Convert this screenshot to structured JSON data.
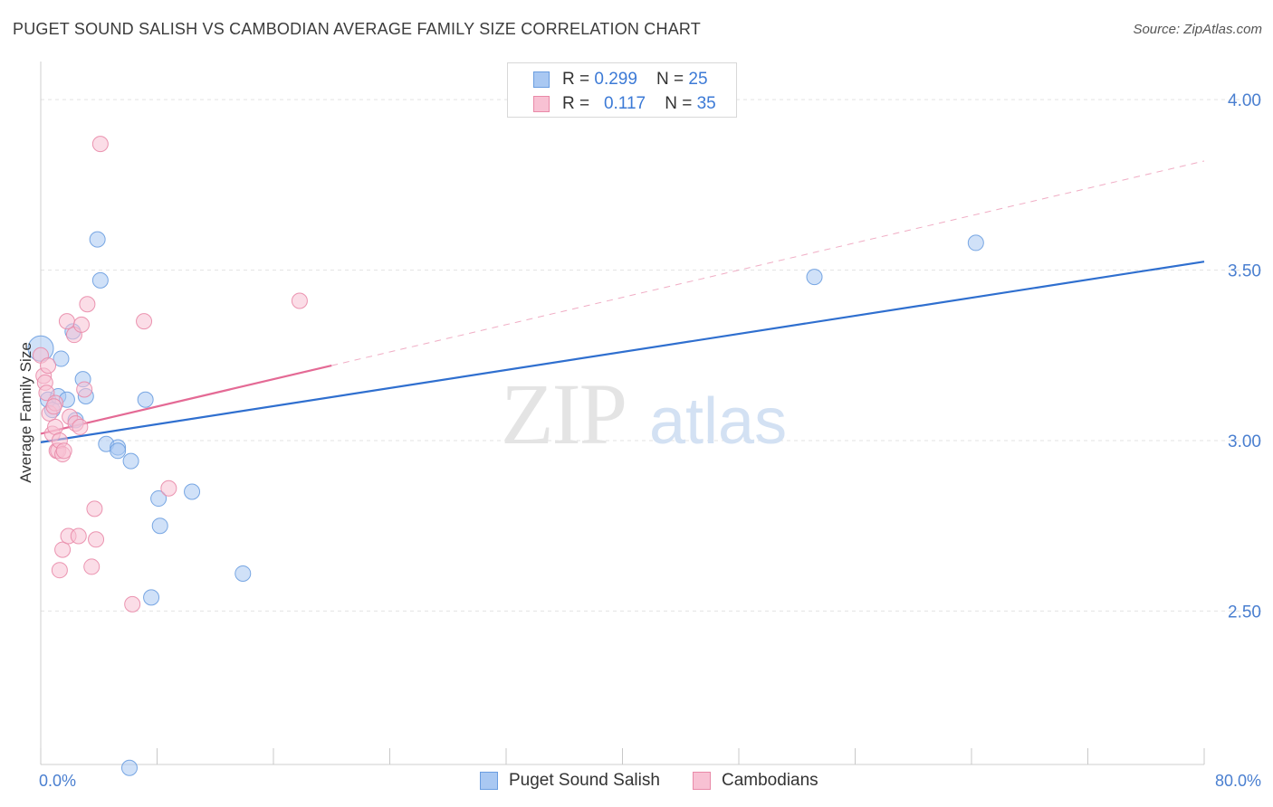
{
  "title": "PUGET SOUND SALISH VS CAMBODIAN AVERAGE FAMILY SIZE CORRELATION CHART",
  "source": "Source: ZipAtlas.com",
  "watermark": {
    "zip": "ZIP",
    "atlas": "atlas"
  },
  "legend": {
    "rows": [
      {
        "r_label": "R = ",
        "r_value": "0.299",
        "n_label": "N = ",
        "n_value": "25",
        "color": "#a9c8f2",
        "border": "#6a9de0"
      },
      {
        "r_label": "R = ",
        "r_value": "0.117",
        "n_label": "N = ",
        "n_value": "35",
        "color": "#f8c1d3",
        "border": "#e98aa8"
      }
    ]
  },
  "bottom_legend": [
    {
      "label": "Puget Sound Salish",
      "color": "#a9c8f2",
      "border": "#6a9de0"
    },
    {
      "label": "Cambodians",
      "color": "#f8c1d3",
      "border": "#e98aa8"
    }
  ],
  "chart_data": {
    "type": "scatter",
    "title": "PUGET SOUND SALISH VS CAMBODIAN AVERAGE FAMILY SIZE CORRELATION CHART",
    "xlabel": "",
    "ylabel": "Average Family Size",
    "xlim": [
      0,
      80
    ],
    "ylim": [
      2.05,
      4.08
    ],
    "x_tick_labels": [
      "0.0%",
      "80.0%"
    ],
    "y_ticks": [
      4.0,
      3.5,
      3.0,
      2.5
    ],
    "y_tick_labels": [
      "4.00",
      "3.50",
      "3.00",
      "2.50"
    ],
    "grid": "horizontal dashed",
    "series": [
      {
        "name": "Puget Sound Salish",
        "color": "#a9c8f2",
        "line_color": "#2f6fcf",
        "r": 0.299,
        "n": 25,
        "points": [
          [
            0.0,
            3.27
          ],
          [
            0.5,
            3.12
          ],
          [
            0.8,
            3.09
          ],
          [
            1.2,
            3.13
          ],
          [
            1.4,
            3.24
          ],
          [
            1.8,
            3.12
          ],
          [
            2.2,
            3.32
          ],
          [
            2.4,
            3.06
          ],
          [
            2.9,
            3.18
          ],
          [
            3.1,
            3.13
          ],
          [
            3.9,
            3.59
          ],
          [
            4.1,
            3.47
          ],
          [
            4.5,
            2.99
          ],
          [
            5.3,
            2.98
          ],
          [
            5.3,
            2.97
          ],
          [
            6.2,
            2.94
          ],
          [
            7.2,
            3.12
          ],
          [
            8.1,
            2.83
          ],
          [
            7.6,
            2.54
          ],
          [
            8.2,
            2.75
          ],
          [
            10.4,
            2.85
          ],
          [
            13.9,
            2.61
          ],
          [
            6.1,
            2.04
          ],
          [
            53.2,
            3.48
          ],
          [
            64.3,
            3.58
          ]
        ],
        "trend": {
          "x": [
            0,
            80
          ],
          "y": [
            2.995,
            3.525
          ]
        }
      },
      {
        "name": "Cambodians",
        "color": "#f8c1d3",
        "line_color": "#e46a95",
        "r": 0.117,
        "n": 35,
        "points": [
          [
            0.0,
            3.25
          ],
          [
            0.2,
            3.19
          ],
          [
            0.3,
            3.17
          ],
          [
            0.4,
            3.14
          ],
          [
            0.5,
            3.22
          ],
          [
            0.6,
            3.08
          ],
          [
            0.8,
            3.02
          ],
          [
            1.0,
            3.11
          ],
          [
            1.0,
            3.04
          ],
          [
            1.1,
            2.97
          ],
          [
            1.2,
            2.97
          ],
          [
            1.3,
            3.0
          ],
          [
            1.3,
            2.62
          ],
          [
            1.5,
            2.96
          ],
          [
            1.6,
            2.97
          ],
          [
            1.5,
            2.68
          ],
          [
            1.8,
            3.35
          ],
          [
            1.9,
            2.72
          ],
          [
            2.0,
            3.07
          ],
          [
            2.3,
            3.31
          ],
          [
            2.4,
            3.05
          ],
          [
            2.6,
            2.72
          ],
          [
            2.7,
            3.04
          ],
          [
            2.8,
            3.34
          ],
          [
            3.0,
            3.15
          ],
          [
            3.2,
            3.4
          ],
          [
            3.5,
            2.63
          ],
          [
            3.7,
            2.8
          ],
          [
            3.8,
            2.71
          ],
          [
            4.1,
            3.87
          ],
          [
            6.3,
            2.52
          ],
          [
            7.1,
            3.35
          ],
          [
            8.8,
            2.86
          ],
          [
            17.8,
            3.41
          ],
          [
            0.9,
            3.1
          ]
        ],
        "trend": {
          "x": [
            0,
            20
          ],
          "y": [
            3.02,
            3.22
          ]
        },
        "trend_extension": {
          "x": [
            20,
            80
          ],
          "y": [
            3.22,
            3.82
          ]
        }
      }
    ]
  }
}
